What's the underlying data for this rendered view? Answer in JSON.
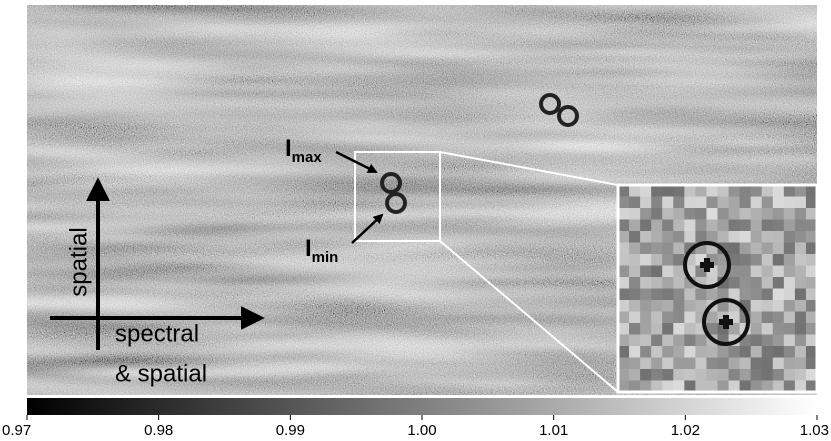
{
  "figure": {
    "annotations": [
      {
        "text": "I",
        "subscript": "max"
      },
      {
        "text": "I",
        "subscript": "min"
      }
    ],
    "axes_labels": {
      "vertical": "spatial",
      "horizontal": [
        "spectral",
        "& spatial"
      ]
    },
    "colorbar": {
      "lim": [
        0.97,
        1.03
      ],
      "ticks": [
        0.97,
        0.98,
        0.99,
        {
          "value": 1,
          "label": "1.00"
        },
        1.01,
        1.02,
        1.03
      ]
    }
  }
}
